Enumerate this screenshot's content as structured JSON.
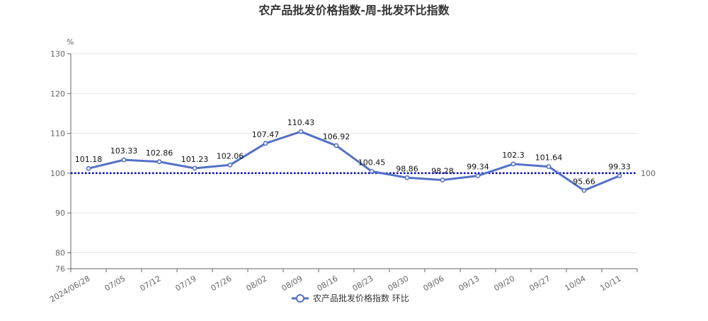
{
  "chart_data": {
    "type": "line",
    "title": "农产品批发价格指数-周-批发环比指数",
    "yunit": "%",
    "ylim": [
      76,
      130
    ],
    "yticks": [
      76,
      80,
      90,
      100,
      110,
      120,
      130
    ],
    "grid": true,
    "legend_position": "bottom",
    "categories": [
      "2024/06/28",
      "07/05",
      "07/12",
      "07/19",
      "07/26",
      "08/02",
      "08/09",
      "08/16",
      "08/23",
      "08/30",
      "09/06",
      "09/13",
      "09/20",
      "09/27",
      "10/04",
      "10/11"
    ],
    "series": [
      {
        "name": "农产品批发价格指数 环比",
        "color": "#5470c6",
        "values": [
          101.18,
          103.33,
          102.86,
          101.23,
          102.06,
          107.47,
          110.43,
          106.92,
          100.45,
          98.86,
          98.28,
          99.34,
          102.3,
          101.64,
          95.66,
          99.33
        ]
      }
    ],
    "reference_line": {
      "value": 100,
      "label": "100",
      "color": "#0000cc"
    }
  }
}
